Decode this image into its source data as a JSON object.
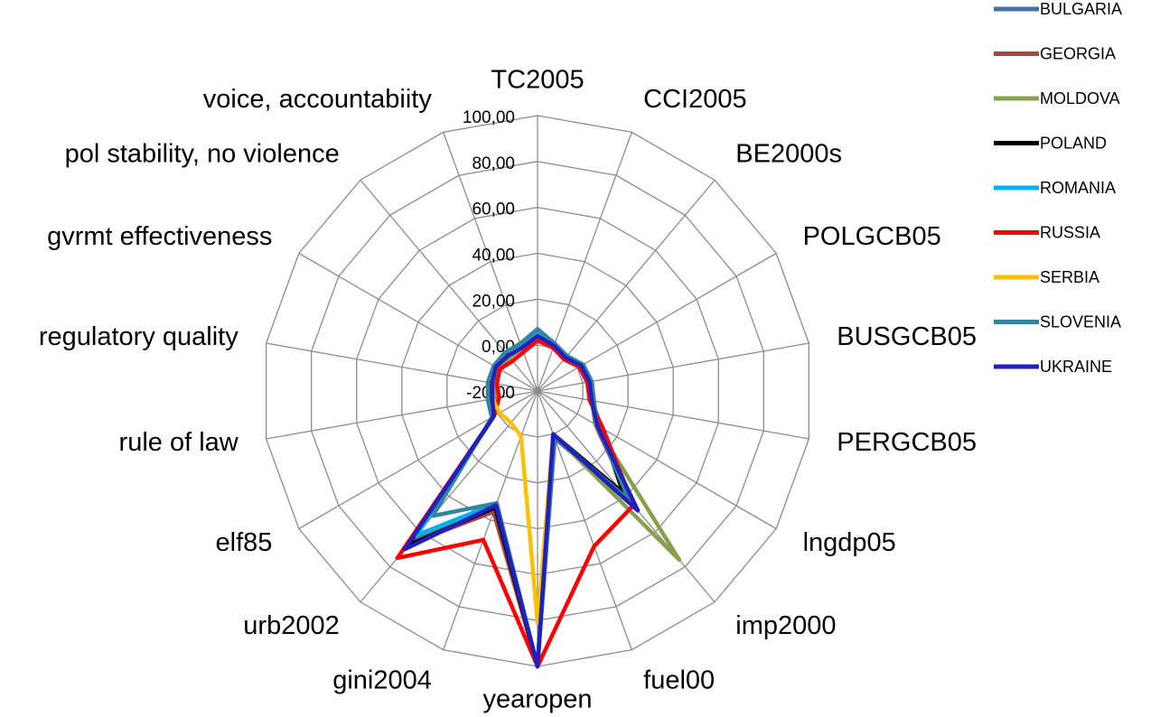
{
  "chart_data": {
    "type": "radar",
    "categories": [
      "TC2005",
      "CCI2005",
      "BE2000s",
      "POLGCB05",
      "BUSGCB05",
      "PERGCB05",
      "lngdp05",
      "imp2000",
      "fuel00",
      "yearopen",
      "gini2004",
      "urb2002",
      "elf85",
      "rule of law",
      "regulatory quality",
      "gvrmt effectiveness",
      "pol stability, no violence",
      "voice, accountabiity"
    ],
    "ylim": [
      -20,
      100
    ],
    "yticks": [
      {
        "value": -20,
        "label": "-20,00"
      },
      {
        "value": 0,
        "label": "0,00"
      },
      {
        "value": 20,
        "label": "20,00"
      },
      {
        "value": 40,
        "label": "40,00"
      },
      {
        "value": 60,
        "label": "60,00"
      },
      {
        "value": 80,
        "label": "80,00"
      },
      {
        "value": 100,
        "label": "100,00"
      }
    ],
    "grid": true,
    "legend": "right",
    "series": [
      {
        "name": "BULGARIA",
        "color": "#4a6fa5",
        "values": [
          5,
          1,
          -1,
          2,
          3,
          4,
          10,
          45,
          2,
          100,
          33,
          66,
          2,
          0,
          0,
          1,
          0,
          1
        ]
      },
      {
        "name": "GEORGIA",
        "color": "#a6463f",
        "values": [
          3,
          1,
          -1,
          2,
          3,
          4,
          9,
          44,
          0,
          100,
          36,
          67,
          2,
          -1,
          -1,
          0,
          -1,
          0
        ]
      },
      {
        "name": "MOLDOVA",
        "color": "#87a04a",
        "values": [
          4,
          1,
          -1,
          2,
          3,
          4,
          9,
          76,
          0,
          100,
          33,
          62,
          2,
          -1,
          -1,
          0,
          -1,
          0
        ]
      },
      {
        "name": "POLAND",
        "color": "#000000",
        "values": [
          5,
          1,
          -1,
          2,
          3,
          4,
          12,
          38,
          0,
          100,
          34,
          68,
          2,
          1,
          1,
          1,
          1,
          1
        ]
      },
      {
        "name": "ROMANIA",
        "color": "#00b0f0",
        "values": [
          5,
          1,
          -1,
          2,
          3,
          4,
          10,
          46,
          0,
          100,
          32,
          62,
          2,
          0,
          0,
          1,
          0,
          1
        ]
      },
      {
        "name": "RUSSIA",
        "color": "#ff0000",
        "values": [
          2,
          0,
          -2,
          1,
          2,
          3,
          13,
          45,
          52,
          100,
          49,
          75,
          2,
          -3,
          -2,
          -1,
          -3,
          -2
        ]
      },
      {
        "name": "SERBIA",
        "color": "#ffc000",
        "values": [
          4,
          1,
          -1,
          2,
          3,
          4,
          10,
          48,
          0,
          81,
          1,
          -2,
          -1,
          0,
          0,
          1,
          0,
          0
        ]
      },
      {
        "name": "SLOVENIA",
        "color": "#31859c",
        "values": [
          7,
          2,
          0,
          3,
          4,
          5,
          10,
          42,
          1,
          100,
          32,
          51,
          3,
          2,
          2,
          2,
          2,
          2
        ]
      },
      {
        "name": "UKRAINE",
        "color": "#2020c0",
        "values": [
          4,
          1,
          -1,
          2,
          3,
          4,
          10,
          48,
          0,
          100,
          33,
          70,
          2,
          0,
          0,
          1,
          0,
          0
        ]
      }
    ]
  }
}
